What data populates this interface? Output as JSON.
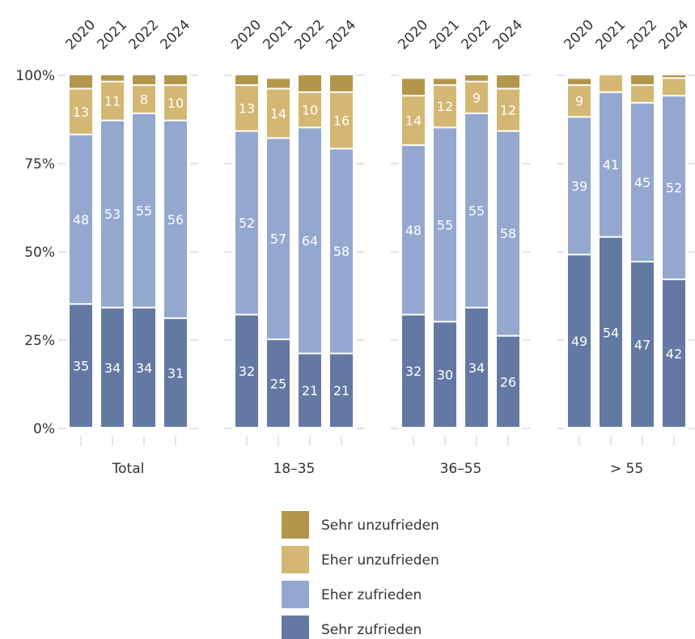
{
  "chart_data": {
    "type": "bar",
    "stacked": true,
    "y_axis": {
      "ylim": [
        0,
        100
      ],
      "ticks": [
        "0%",
        "25%",
        "50%",
        "75%",
        "100%"
      ],
      "tick_values": [
        0,
        25,
        50,
        75,
        100
      ]
    },
    "grid": false,
    "legend_position": "bottom",
    "segment_order": [
      "Sehr zufrieden",
      "Eher zufrieden",
      "Eher unzufrieden",
      "Sehr unzufrieden"
    ],
    "colors": {
      "Sehr zufrieden": "#6379a3",
      "Eher zufrieden": "#94a8cf",
      "Eher unzufrieden": "#d4b773",
      "Sehr unzufrieden": "#b3964b"
    },
    "legend": [
      "Sehr unzufrieden",
      "Eher unzufrieden",
      "Eher zufrieden",
      "Sehr zufrieden"
    ],
    "groups": [
      {
        "name": "Total",
        "bars": [
          {
            "year": "2020",
            "values": [
              35,
              48,
              13,
              4
            ],
            "labels": [
              "35",
              "48",
              "13",
              ""
            ]
          },
          {
            "year": "2021",
            "values": [
              34,
              53,
              11,
              2
            ],
            "labels": [
              "34",
              "53",
              "11",
              ""
            ]
          },
          {
            "year": "2022",
            "values": [
              34,
              55,
              8,
              3
            ],
            "labels": [
              "34",
              "55",
              "8",
              ""
            ]
          },
          {
            "year": "2024",
            "values": [
              31,
              56,
              10,
              3
            ],
            "labels": [
              "31",
              "56",
              "10",
              ""
            ]
          }
        ]
      },
      {
        "name": "18–35",
        "bars": [
          {
            "year": "2020",
            "values": [
              32,
              52,
              13,
              3
            ],
            "labels": [
              "32",
              "52",
              "13",
              ""
            ]
          },
          {
            "year": "2021",
            "values": [
              25,
              57,
              14,
              3
            ],
            "labels": [
              "25",
              "57",
              "14",
              ""
            ]
          },
          {
            "year": "2022",
            "values": [
              21,
              64,
              10,
              5
            ],
            "labels": [
              "21",
              "64",
              "10",
              ""
            ]
          },
          {
            "year": "2024",
            "values": [
              21,
              58,
              16,
              5
            ],
            "labels": [
              "21",
              "58",
              "16",
              ""
            ]
          }
        ]
      },
      {
        "name": "36–55",
        "bars": [
          {
            "year": "2020",
            "values": [
              32,
              48,
              14,
              5
            ],
            "labels": [
              "32",
              "48",
              "14",
              ""
            ]
          },
          {
            "year": "2021",
            "values": [
              30,
              55,
              12,
              2
            ],
            "labels": [
              "30",
              "55",
              "12",
              ""
            ]
          },
          {
            "year": "2022",
            "values": [
              34,
              55,
              9,
              2
            ],
            "labels": [
              "34",
              "55",
              "9",
              ""
            ]
          },
          {
            "year": "2024",
            "values": [
              26,
              58,
              12,
              4
            ],
            "labels": [
              "26",
              "58",
              "12",
              ""
            ]
          }
        ]
      },
      {
        "name": "> 55",
        "bars": [
          {
            "year": "2020",
            "values": [
              49,
              39,
              9,
              2
            ],
            "labels": [
              "49",
              "39",
              "9",
              ""
            ]
          },
          {
            "year": "2021",
            "values": [
              54,
              41,
              5,
              0
            ],
            "labels": [
              "54",
              "41",
              "",
              ""
            ]
          },
          {
            "year": "2022",
            "values": [
              47,
              45,
              5,
              3
            ],
            "labels": [
              "47",
              "45",
              "",
              ""
            ]
          },
          {
            "year": "2024",
            "values": [
              42,
              52,
              5,
              1
            ],
            "labels": [
              "42",
              "52",
              "",
              ""
            ]
          }
        ]
      }
    ]
  }
}
